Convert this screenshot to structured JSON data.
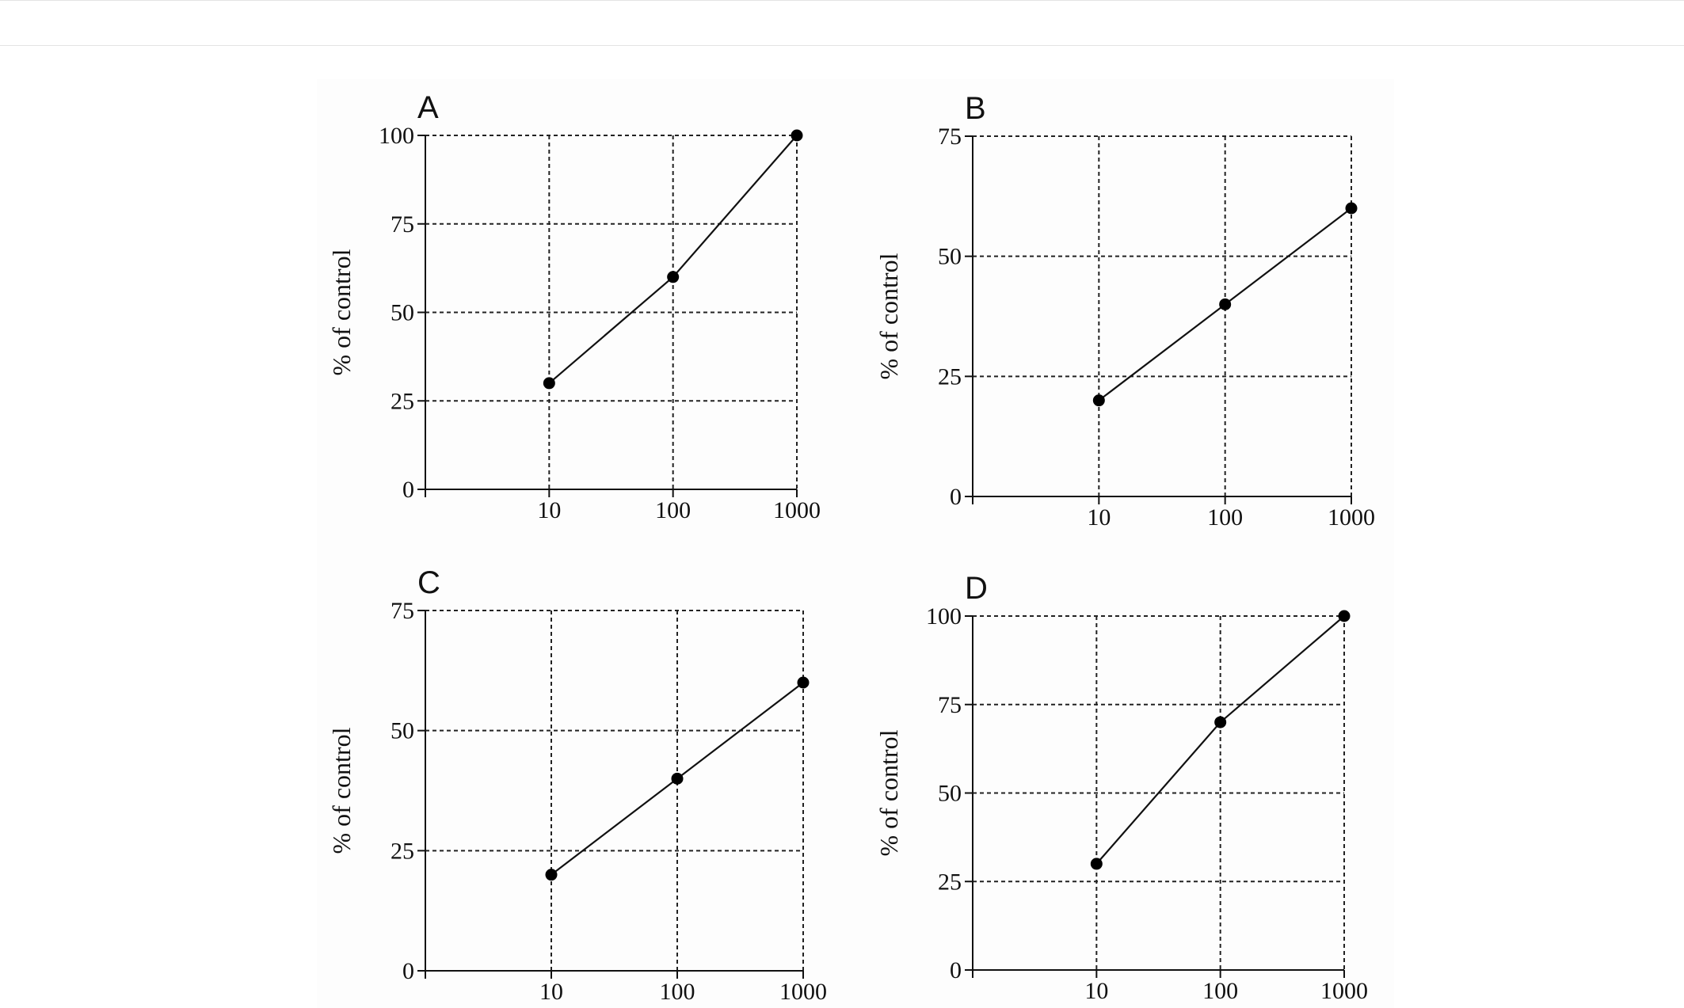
{
  "chart_data": [
    {
      "type": "line",
      "panel_label": "A",
      "x": [
        10,
        100,
        1000
      ],
      "xscale": "log",
      "xticks": [
        "10",
        "100",
        "1000"
      ],
      "y": [
        30,
        60,
        100
      ],
      "ylim": [
        0,
        100
      ],
      "yticks": [
        "0",
        "25",
        "50",
        "75",
        "100"
      ],
      "ylabel": "% of control",
      "xlabel": "",
      "grid": "dashed"
    },
    {
      "type": "line",
      "panel_label": "B",
      "x": [
        10,
        100,
        1000
      ],
      "xscale": "log",
      "xticks": [
        "10",
        "100",
        "1000"
      ],
      "y": [
        20,
        40,
        60
      ],
      "ylim": [
        0,
        75
      ],
      "yticks": [
        "0",
        "25",
        "50",
        "75"
      ],
      "ylabel": "% of control",
      "xlabel": "",
      "grid": "dashed"
    },
    {
      "type": "line",
      "panel_label": "C",
      "x": [
        10,
        100,
        1000
      ],
      "xscale": "log",
      "xticks": [
        "10",
        "100",
        "1000"
      ],
      "y": [
        20,
        40,
        60
      ],
      "ylim": [
        0,
        75
      ],
      "yticks": [
        "0",
        "25",
        "50",
        "75"
      ],
      "ylabel": "% of control",
      "xlabel": "",
      "grid": "dashed"
    },
    {
      "type": "line",
      "panel_label": "D",
      "x": [
        10,
        100,
        1000
      ],
      "xscale": "log",
      "xticks": [
        "10",
        "100",
        "1000"
      ],
      "y": [
        30,
        70,
        100
      ],
      "ylim": [
        0,
        100
      ],
      "yticks": [
        "0",
        "25",
        "50",
        "75",
        "100"
      ],
      "ylabel": "% of control",
      "xlabel": "",
      "grid": "dashed"
    }
  ]
}
